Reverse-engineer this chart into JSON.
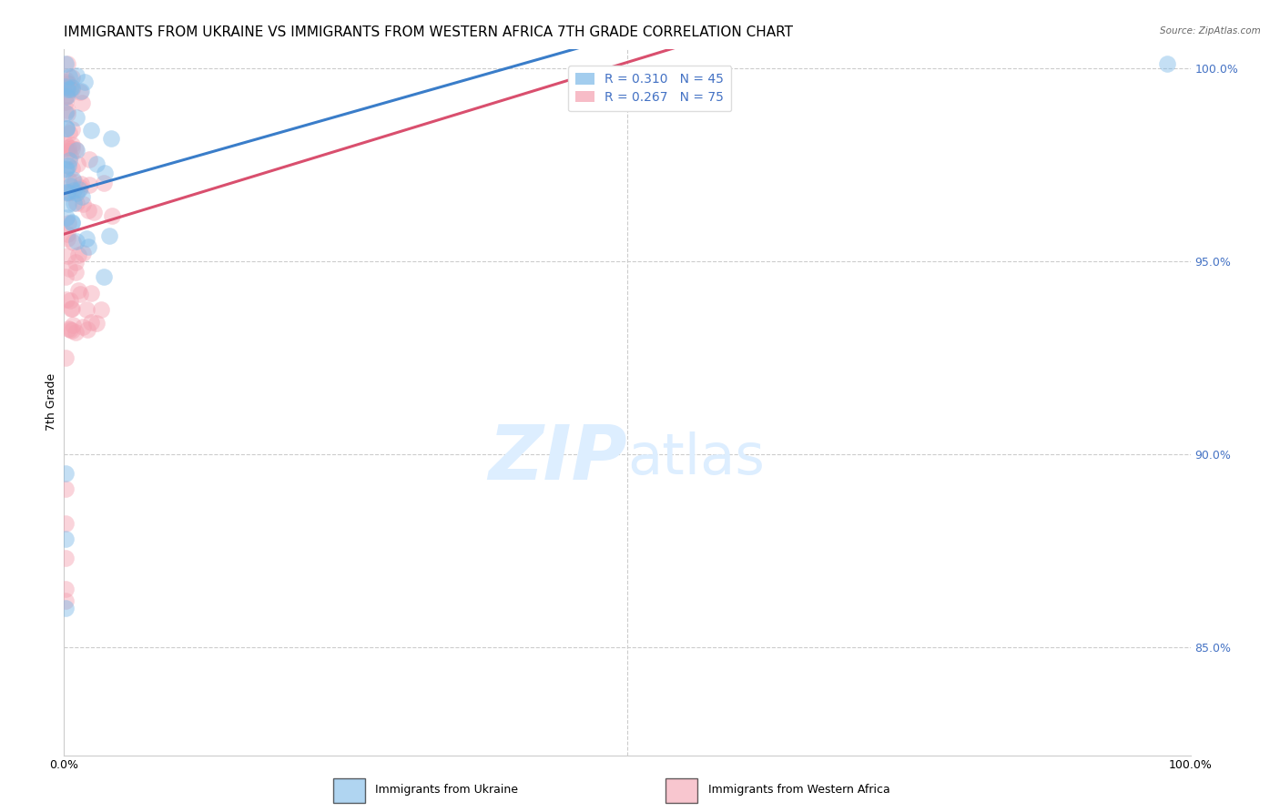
{
  "title": "IMMIGRANTS FROM UKRAINE VS IMMIGRANTS FROM WESTERN AFRICA 7TH GRADE CORRELATION CHART",
  "source": "Source: ZipAtlas.com",
  "xlabel_left": "Immigrants from Ukraine",
  "xlabel_right": "Immigrants from Western Africa",
  "ylabel": "7th Grade",
  "xlim": [
    0.0,
    1.0
  ],
  "ylim": [
    0.822,
    1.005
  ],
  "right_yticks": [
    0.85,
    0.9,
    0.95,
    1.0
  ],
  "right_yticklabels": [
    "85.0%",
    "90.0%",
    "95.0%",
    "100.0%"
  ],
  "ukraine_R": 0.31,
  "ukraine_N": 45,
  "western_africa_R": 0.267,
  "western_africa_N": 75,
  "ukraine_color": "#7cb9e8",
  "western_africa_color": "#f4a0b0",
  "ukraine_line_color": "#3a7dc9",
  "western_africa_line_color": "#d94f6e",
  "background_color": "#ffffff",
  "grid_color": "#cccccc",
  "title_fontsize": 11,
  "axis_label_fontsize": 9,
  "tick_fontsize": 9,
  "legend_fontsize": 10,
  "watermark_color": "#ddeeff",
  "watermark_fontsize": 60
}
